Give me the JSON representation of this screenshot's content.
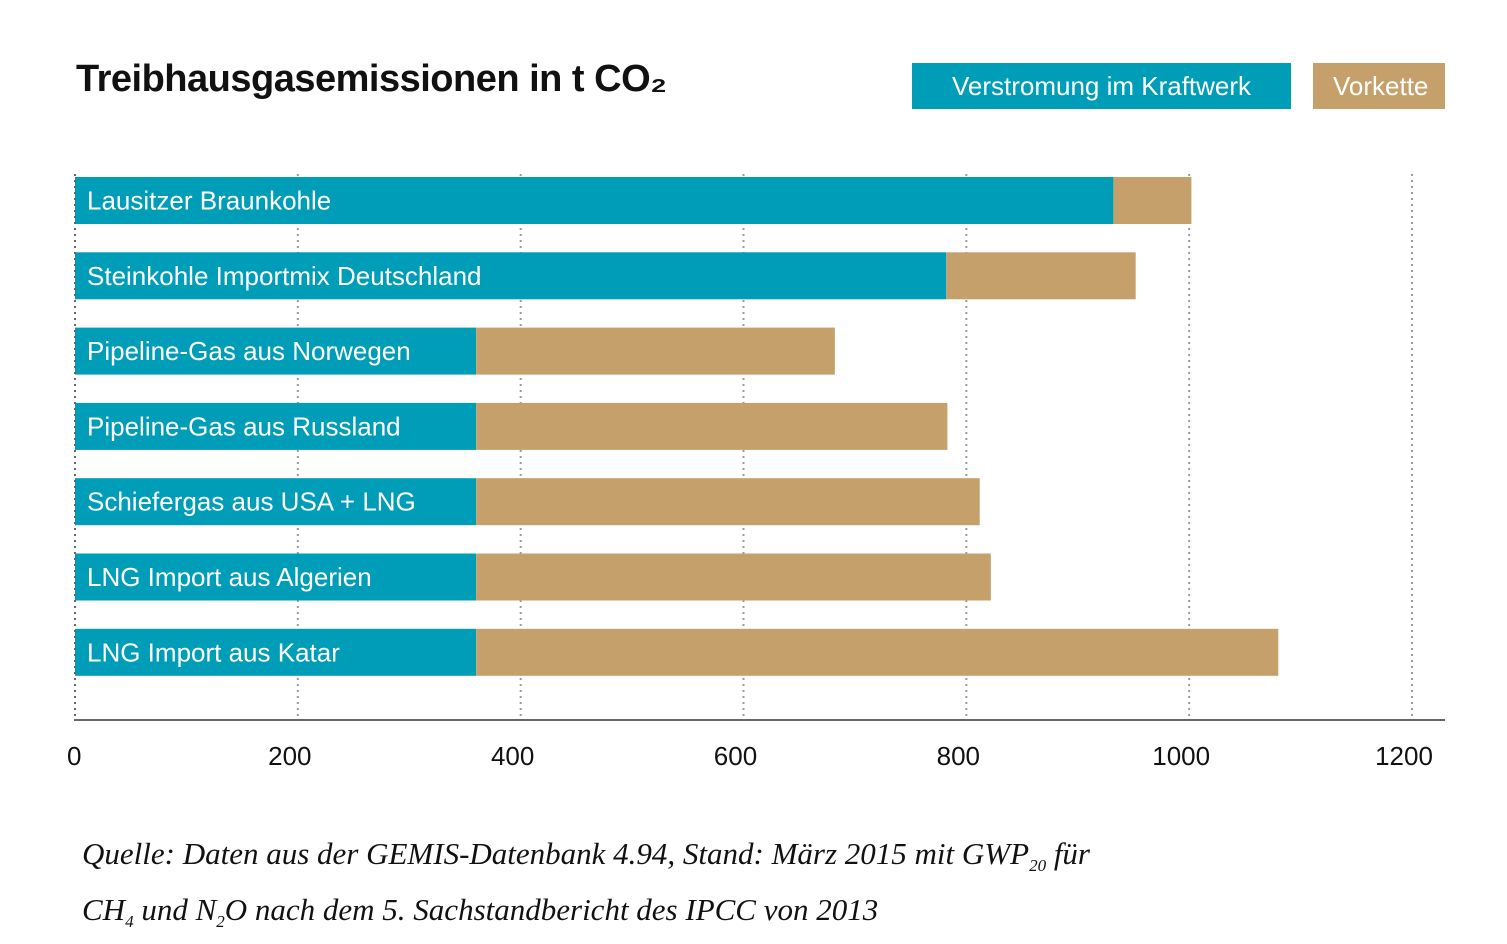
{
  "colors": {
    "kraftwerk": "#009db8",
    "vorkette": "#c6a06b",
    "grid": "#9a9a9a",
    "axis": "#666666"
  },
  "title": "Treibhausgasemissionen in t CO₂",
  "legend": {
    "kraftwerk": "Verstromung im Kraftwerk",
    "vorkette": "Vorkette"
  },
  "source": {
    "line1_pre": "Quelle: Daten aus der GEMIS-Datenbank 4.94, Stand: März 2015 mit GWP",
    "line1_sub": "20",
    "line1_post": " für",
    "line2_a": "CH",
    "line2_a_sub": "4",
    "line2_b": " und N",
    "line2_b_sub": "2",
    "line2_c": "O nach dem 5. Sachstandbericht des IPCC von 2013"
  },
  "chart_data": {
    "type": "bar",
    "orientation": "horizontal",
    "stacked": true,
    "title": "Treibhausgasemissionen in t CO₂",
    "categories": [
      "Lausitzer Braunkohle",
      "Steinkohle Importmix Deutschland",
      "Pipeline-Gas aus Norwegen",
      "Pipeline-Gas aus Russland",
      "Schiefergas aus USA + LNG",
      "LNG Import aus Algerien",
      "LNG Import aus Katar"
    ],
    "series": [
      {
        "name": "Verstromung im Kraftwerk",
        "values": [
          932,
          782,
          360,
          360,
          360,
          360,
          360
        ]
      },
      {
        "name": "Vorkette",
        "values": [
          70,
          170,
          322,
          423,
          452,
          462,
          720
        ]
      }
    ],
    "xlim": [
      0,
      1200
    ],
    "xticks": [
      0,
      200,
      400,
      600,
      800,
      1000,
      1200
    ],
    "grid": true,
    "legend_position": "top-right"
  }
}
